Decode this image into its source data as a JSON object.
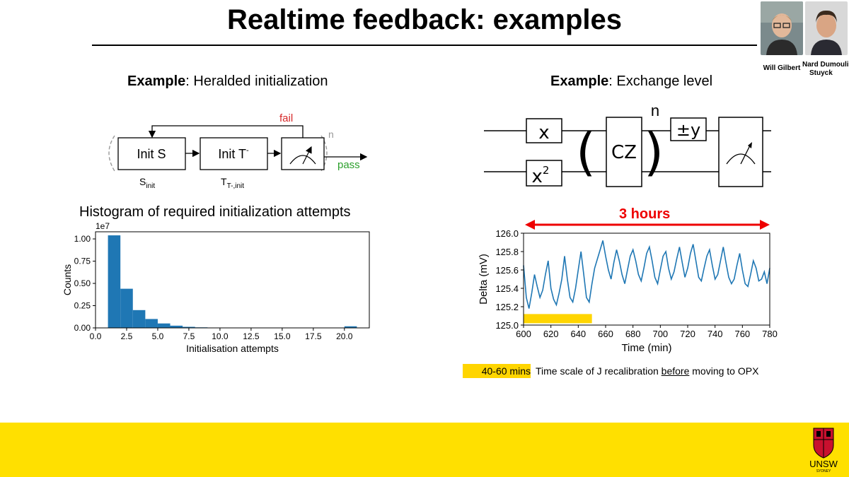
{
  "title": "Realtime feedback: examples",
  "speakers": [
    {
      "name": "Will Gilbert"
    },
    {
      "name_line1": "Nard Dumoulin",
      "name_line2": "Stuyck"
    }
  ],
  "left_example": {
    "prefix": "Example",
    "suffix": ": Heralded initialization",
    "box1": "Init S",
    "box2_base": "Init T",
    "box2_sup": "-",
    "label1_base": "S",
    "label1_sub": "init",
    "label2_base": "T",
    "label2_sub": "T-,init",
    "fail": "fail",
    "pass": "pass",
    "loop_n": "n",
    "colors": {
      "fail": "#d62728",
      "pass": "#2ca02c",
      "n": "#999999"
    }
  },
  "right_example": {
    "prefix": "Example",
    "suffix": ": Exchange level",
    "gate_x": "x",
    "gate_x2_base": "x",
    "gate_x2_sup": "2",
    "gate_cz": "CZ",
    "gate_y": "±y",
    "repeat_n": "n"
  },
  "histogram_title": "Histogram of required initialization attempts",
  "three_hours": "3 hours",
  "note": {
    "badge": "40-60 mins",
    "text_a": "Time scale of J recalibration ",
    "text_u": "before",
    "text_b": " moving to OPX"
  },
  "footer": {
    "logo": "UNSW",
    "logo_sub": "SYDNEY",
    "color": "#FFE000"
  },
  "chart_data": [
    {
      "type": "bar",
      "title": "",
      "xlabel": "Initialisation attempts",
      "ylabel": "Counts",
      "y_scale_label": "1e7",
      "xlim": [
        0,
        22
      ],
      "ylim": [
        0,
        1.08
      ],
      "xticks": [
        "0.0",
        "2.5",
        "5.0",
        "7.5",
        "10.0",
        "12.5",
        "15.0",
        "17.5",
        "20.0"
      ],
      "yticks": [
        "0.00",
        "0.25",
        "0.50",
        "0.75",
        "1.00"
      ],
      "bin_width": 1,
      "bins": [
        1,
        2,
        3,
        4,
        5,
        6,
        7,
        8,
        9,
        10,
        20
      ],
      "values": [
        1.04,
        0.44,
        0.2,
        0.1,
        0.05,
        0.025,
        0.012,
        0.006,
        0.003,
        0.002,
        0.018
      ],
      "color": "#1f77b4"
    },
    {
      "type": "line",
      "title": "",
      "xlabel": "Time (min)",
      "ylabel": "Delta (mV)",
      "xlim": [
        600,
        780
      ],
      "ylim": [
        125.0,
        126.0
      ],
      "xticks": [
        "600",
        "620",
        "640",
        "660",
        "680",
        "700",
        "720",
        "740",
        "760",
        "780"
      ],
      "yticks": [
        "125.0",
        "125.2",
        "125.4",
        "125.6",
        "125.8",
        "126.0"
      ],
      "color": "#1f77b4",
      "highlight_range": [
        600,
        650
      ],
      "highlight_color": "#FFD500",
      "series": [
        {
          "x": [
            600,
            602,
            604,
            606,
            608,
            610,
            612,
            614,
            616,
            618,
            620,
            622,
            624,
            626,
            628,
            630,
            632,
            634,
            636,
            638,
            640,
            642,
            644,
            646,
            648,
            650,
            652,
            654,
            656,
            658,
            660,
            662,
            664,
            666,
            668,
            670,
            672,
            674,
            676,
            678,
            680,
            682,
            684,
            686,
            688,
            690,
            692,
            694,
            696,
            698,
            700,
            702,
            704,
            706,
            708,
            710,
            712,
            714,
            716,
            718,
            720,
            722,
            724,
            726,
            728,
            730,
            732,
            734,
            736,
            738,
            740,
            742,
            744,
            746,
            748,
            750,
            752,
            754,
            756,
            758,
            760,
            762,
            764,
            766,
            768,
            770,
            772,
            774,
            776,
            778,
            780
          ],
          "y": [
            125.65,
            125.3,
            125.18,
            125.35,
            125.55,
            125.42,
            125.3,
            125.38,
            125.55,
            125.7,
            125.4,
            125.28,
            125.22,
            125.35,
            125.5,
            125.75,
            125.5,
            125.3,
            125.25,
            125.4,
            125.6,
            125.8,
            125.55,
            125.3,
            125.25,
            125.45,
            125.62,
            125.72,
            125.82,
            125.92,
            125.75,
            125.6,
            125.5,
            125.68,
            125.82,
            125.7,
            125.55,
            125.45,
            125.6,
            125.75,
            125.82,
            125.7,
            125.55,
            125.48,
            125.62,
            125.78,
            125.85,
            125.7,
            125.52,
            125.45,
            125.6,
            125.75,
            125.8,
            125.62,
            125.5,
            125.58,
            125.72,
            125.85,
            125.68,
            125.52,
            125.62,
            125.78,
            125.88,
            125.7,
            125.52,
            125.48,
            125.62,
            125.75,
            125.82,
            125.65,
            125.5,
            125.55,
            125.7,
            125.85,
            125.68,
            125.52,
            125.45,
            125.5,
            125.65,
            125.78,
            125.6,
            125.45,
            125.42,
            125.55,
            125.7,
            125.62,
            125.48,
            125.5,
            125.58,
            125.45,
            125.62
          ]
        }
      ]
    }
  ]
}
